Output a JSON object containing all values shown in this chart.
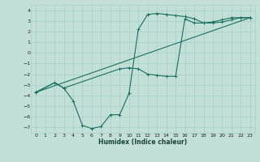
{
  "xlabel": "Humidex (Indice chaleur)",
  "bg_color": "#c2e0d8",
  "line_color": "#1a7060",
  "grid_color": "#a8cfc8",
  "xlim": [
    -0.5,
    23.5
  ],
  "ylim": [
    -7.5,
    4.5
  ],
  "xticks": [
    0,
    1,
    2,
    3,
    4,
    5,
    6,
    7,
    8,
    9,
    10,
    11,
    12,
    13,
    14,
    15,
    16,
    17,
    18,
    19,
    20,
    21,
    22,
    23
  ],
  "yticks": [
    -7,
    -6,
    -5,
    -4,
    -3,
    -2,
    -1,
    0,
    1,
    2,
    3,
    4
  ],
  "line1_x": [
    0,
    2,
    3,
    4,
    5,
    6,
    7,
    8,
    9,
    10,
    11,
    12,
    13,
    14,
    15,
    16,
    17,
    18,
    19,
    20,
    21,
    22,
    23
  ],
  "line1_y": [
    -3.7,
    -2.8,
    -3.3,
    -4.5,
    -6.8,
    -7.1,
    -6.9,
    -5.8,
    -5.8,
    -3.8,
    2.2,
    3.6,
    3.7,
    3.6,
    3.5,
    3.4,
    3.2,
    2.8,
    2.8,
    2.9,
    3.1,
    3.3,
    3.3
  ],
  "line2_x": [
    0,
    2,
    3,
    9,
    10,
    11,
    12,
    13,
    14,
    15,
    16,
    17,
    18,
    19,
    20,
    21,
    22,
    23
  ],
  "line2_y": [
    -3.7,
    -2.8,
    -3.3,
    -1.5,
    -1.4,
    -1.5,
    -2.0,
    -2.1,
    -2.2,
    -2.2,
    3.2,
    2.8,
    2.8,
    2.9,
    3.1,
    3.3,
    3.3,
    3.3
  ],
  "line3_x": [
    0,
    23
  ],
  "line3_y": [
    -3.7,
    3.3
  ]
}
